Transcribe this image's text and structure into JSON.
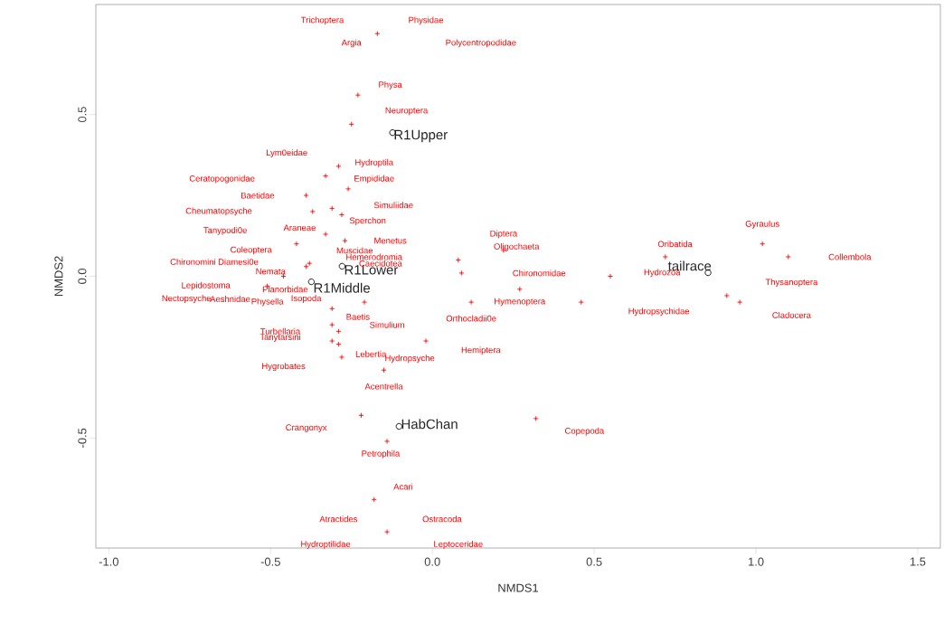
{
  "chart_data": {
    "type": "scatter",
    "xlabel": "NMDS1",
    "ylabel": "NMDS2",
    "xlim": [
      -1.04,
      1.57
    ],
    "ylim": [
      -0.84,
      0.84
    ],
    "xticks": [
      {
        "value": -1.0,
        "label": "-1.0"
      },
      {
        "value": -0.5,
        "label": "-0.5"
      },
      {
        "value": 0.0,
        "label": "0.0"
      },
      {
        "value": 0.5,
        "label": "0.5"
      },
      {
        "value": 1.0,
        "label": "1.0"
      },
      {
        "value": 1.5,
        "label": "1.5"
      }
    ],
    "yticks": [
      {
        "value": -0.5,
        "label": "-0.5"
      },
      {
        "value": 0.0,
        "label": "0.0"
      },
      {
        "value": 0.5,
        "label": "0.5"
      }
    ],
    "series": [
      {
        "color": "#ff0000",
        "marker": "cross",
        "x": [
          -0.17,
          -0.23,
          -0.25,
          -0.29,
          -0.33,
          -0.26,
          -0.39,
          -0.37,
          -0.31,
          -0.28,
          -0.33,
          -0.27,
          -0.42,
          -0.38,
          -0.39,
          -0.46,
          -0.51,
          -0.21,
          -0.31,
          -0.31,
          -0.29,
          -0.31,
          -0.29,
          -0.28,
          -0.15,
          -0.02,
          0.08,
          0.09,
          0.22,
          0.27,
          0.12,
          0.46,
          1.02,
          1.1,
          0.72,
          0.55,
          0.91,
          0.95,
          -0.22,
          0.32,
          -0.14,
          -0.18,
          -0.14
        ],
        "values": [
          0.75,
          0.56,
          0.47,
          0.34,
          0.31,
          0.27,
          0.25,
          0.2,
          0.21,
          0.19,
          0.13,
          0.11,
          0.1,
          0.04,
          0.03,
          0.0,
          -0.03,
          -0.08,
          -0.1,
          -0.15,
          -0.17,
          -0.2,
          -0.21,
          -0.25,
          -0.29,
          -0.2,
          0.05,
          0.01,
          0.08,
          -0.04,
          -0.08,
          -0.08,
          0.1,
          0.06,
          0.06,
          0.0,
          -0.06,
          -0.08,
          -0.43,
          -0.44,
          -0.51,
          -0.69,
          -0.79
        ]
      },
      {
        "name": "R1Upper",
        "color": "#000000",
        "marker": "circle",
        "x": [
          -0.123
        ],
        "values": [
          0.444
        ]
      },
      {
        "name": "R1Lower",
        "color": "#000000",
        "marker": "circle",
        "x": [
          -0.279
        ],
        "values": [
          0.031
        ]
      },
      {
        "name": "R1Middle",
        "color": "#000000",
        "marker": "circle",
        "x": [
          -0.374
        ],
        "values": [
          -0.017
        ]
      },
      {
        "name": "HabChan",
        "color": "#000000",
        "marker": "circle",
        "x": [
          -0.103
        ],
        "values": [
          -0.464
        ]
      },
      {
        "name": "tailrace",
        "color": "#000000",
        "marker": "circle",
        "x": [
          0.852
        ],
        "values": [
          0.011
        ]
      }
    ],
    "annotations": [
      "Trichoptera",
      "Physidae",
      "Argia",
      "Polycentropodidae",
      "Physa",
      "Neuroptera",
      "Lym0eidae",
      "Hydroptila",
      "Ceratopogonidae",
      "Empididae",
      "Baetidae",
      "Simuliidae",
      "Cheumatopsyche",
      "Sperchon",
      "Tanypodi0e",
      "Araneae",
      "Menetus",
      "Coleoptera",
      "Muscidae",
      "Hemerodromia",
      "Chironomini",
      "Diamesi0e",
      "Caecidotea",
      "Nemata",
      "Lepidostoma",
      "Planorbidae",
      "Nectopsyche",
      "Aeshnidae",
      "Physella",
      "Isopoda",
      "Baetis",
      "Simulium",
      "Turbellaria",
      "Tanytarsini",
      "Lebertia",
      "Hydropsyche",
      "Hygrobates",
      "Acentrella",
      "Crangonyx",
      "Petrophila",
      "Acari",
      "Atractides",
      "Ostracoda",
      "Hydroptilidae",
      "Leptoceridae",
      "Copepoda",
      "Diptera",
      "Oligochaeta",
      "Chironomidae",
      "Hymenoptera",
      "Orthocladii0e",
      "Hemiptera",
      "Oribatida",
      "Gyraulus",
      "Collembola",
      "Hydrozoa",
      "Thysanoptera",
      "Hydropsychidae",
      "Cladocera"
    ]
  }
}
